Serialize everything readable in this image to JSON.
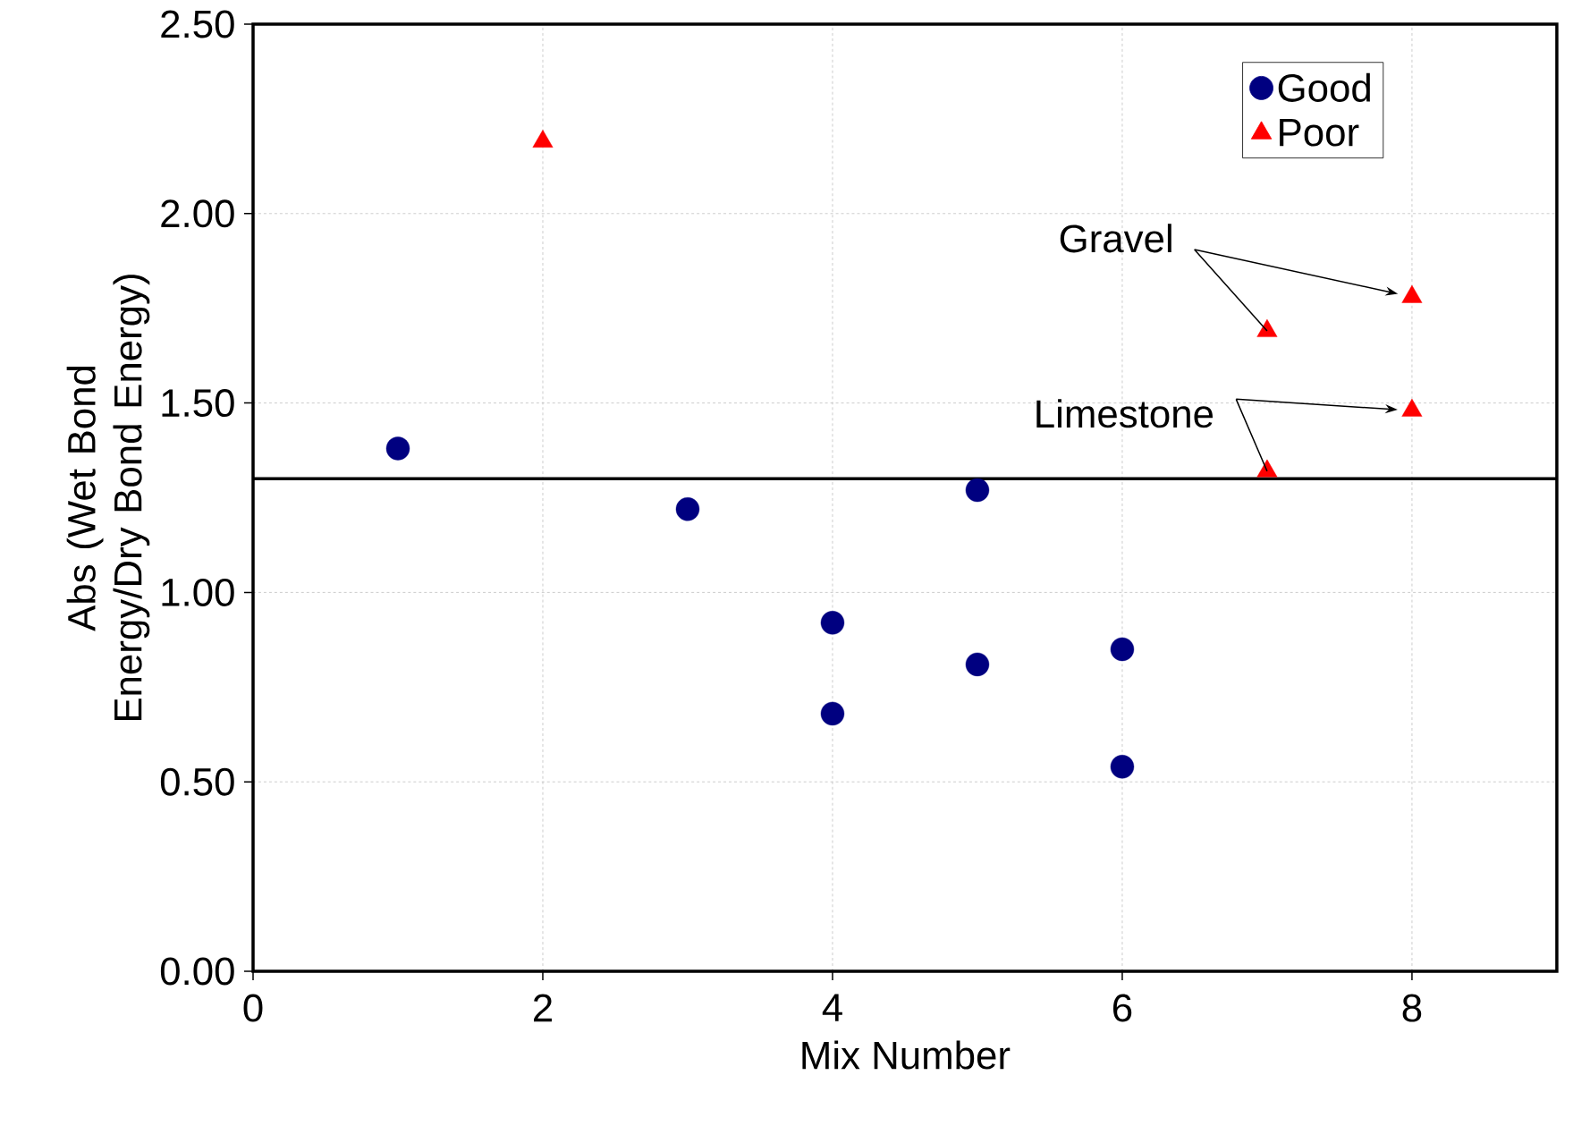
{
  "chart_data": {
    "type": "scatter",
    "xlabel": "Mix Number",
    "ylabel": "Abs (Wet Bond Energy/Dry Bond Energy)",
    "series": [
      {
        "name": "Good",
        "color": "#000080",
        "marker": "circle",
        "x": [
          1,
          3,
          4,
          4,
          5,
          5,
          6,
          6
        ],
        "values": [
          1.38,
          1.22,
          0.92,
          0.68,
          1.27,
          0.81,
          0.85,
          0.54
        ]
      },
      {
        "name": "Poor",
        "color": "#ff0000",
        "marker": "triangle",
        "x": [
          2,
          7,
          8,
          7,
          8
        ],
        "values": [
          2.19,
          1.69,
          1.78,
          1.32,
          1.48
        ]
      }
    ],
    "xlim": [
      0,
      9
    ],
    "xticks": [
      0,
      2,
      4,
      6,
      8
    ],
    "ylim": [
      0,
      2.5
    ],
    "yticks": [
      {
        "value": 0,
        "label": "0.00"
      },
      {
        "value": 0.5,
        "label": "0.50"
      },
      {
        "value": 1,
        "label": "1.00"
      },
      {
        "value": 1.5,
        "label": "1.50"
      },
      {
        "value": 2,
        "label": "2.00"
      },
      {
        "value": 2.5,
        "label": "2.50"
      }
    ],
    "ref_lines": [
      {
        "axis": "y",
        "value": 1.3,
        "color": "#000000"
      }
    ],
    "annotations": [
      {
        "text": "Gravel",
        "x": 7,
        "y": 1.69
      },
      {
        "text": "Limestone",
        "x": 7,
        "y": 1.32
      }
    ],
    "grid": true,
    "legend": "top right"
  }
}
